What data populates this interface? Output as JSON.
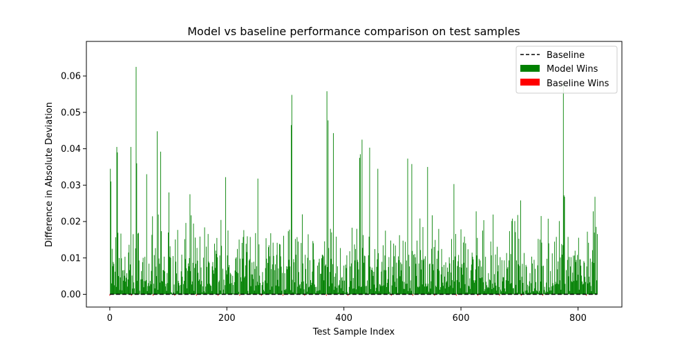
{
  "chart_data": {
    "type": "bar",
    "title": "Model vs baseline performance comparison on test samples",
    "xlabel": "Test Sample Index",
    "ylabel": "Difference in Absolute Deviation",
    "xlim": [
      -40,
      875
    ],
    "ylim": [
      -0.0035,
      0.0695
    ],
    "x_ticks": [
      0,
      200,
      400,
      600,
      800
    ],
    "y_ticks": [
      0.0,
      0.01,
      0.02,
      0.03,
      0.04,
      0.05,
      0.06
    ],
    "y_tick_labels": [
      "0.00",
      "0.01",
      "0.02",
      "0.03",
      "0.04",
      "0.05",
      "0.06"
    ],
    "n_samples": 834,
    "legend_position": "upper right",
    "grid": false,
    "series": [
      {
        "name": "Baseline",
        "style": "dashed-line",
        "color": "#000000",
        "value": 0.0
      },
      {
        "name": "Model Wins",
        "color": "#008000",
        "peaks": [
          {
            "x": 1,
            "y": 0.0345
          },
          {
            "x": 2,
            "y": 0.031
          },
          {
            "x": 12,
            "y": 0.0405
          },
          {
            "x": 13,
            "y": 0.039
          },
          {
            "x": 36,
            "y": 0.0405
          },
          {
            "x": 45,
            "y": 0.0625
          },
          {
            "x": 46,
            "y": 0.036
          },
          {
            "x": 63,
            "y": 0.033
          },
          {
            "x": 81,
            "y": 0.0448
          },
          {
            "x": 87,
            "y": 0.0392
          },
          {
            "x": 101,
            "y": 0.028
          },
          {
            "x": 137,
            "y": 0.0275
          },
          {
            "x": 198,
            "y": 0.0322
          },
          {
            "x": 253,
            "y": 0.0318
          },
          {
            "x": 311,
            "y": 0.0548
          },
          {
            "x": 310,
            "y": 0.0465
          },
          {
            "x": 371,
            "y": 0.0558
          },
          {
            "x": 373,
            "y": 0.0478
          },
          {
            "x": 382,
            "y": 0.0443
          },
          {
            "x": 428,
            "y": 0.0385
          },
          {
            "x": 431,
            "y": 0.0425
          },
          {
            "x": 427,
            "y": 0.0375
          },
          {
            "x": 444,
            "y": 0.0403
          },
          {
            "x": 458,
            "y": 0.0345
          },
          {
            "x": 509,
            "y": 0.0373
          },
          {
            "x": 516,
            "y": 0.0358
          },
          {
            "x": 543,
            "y": 0.035
          },
          {
            "x": 588,
            "y": 0.0303
          },
          {
            "x": 626,
            "y": 0.0228
          },
          {
            "x": 688,
            "y": 0.0208
          },
          {
            "x": 702,
            "y": 0.0258
          },
          {
            "x": 775,
            "y": 0.058
          },
          {
            "x": 776,
            "y": 0.0272
          },
          {
            "x": 777,
            "y": 0.0268
          },
          {
            "x": 829,
            "y": 0.0268
          },
          {
            "x": 826,
            "y": 0.0228
          }
        ]
      },
      {
        "name": "Baseline Wins",
        "color": "#ff0000",
        "note_values_approx": [
          -0.0005,
          -0.0003
        ]
      }
    ]
  }
}
